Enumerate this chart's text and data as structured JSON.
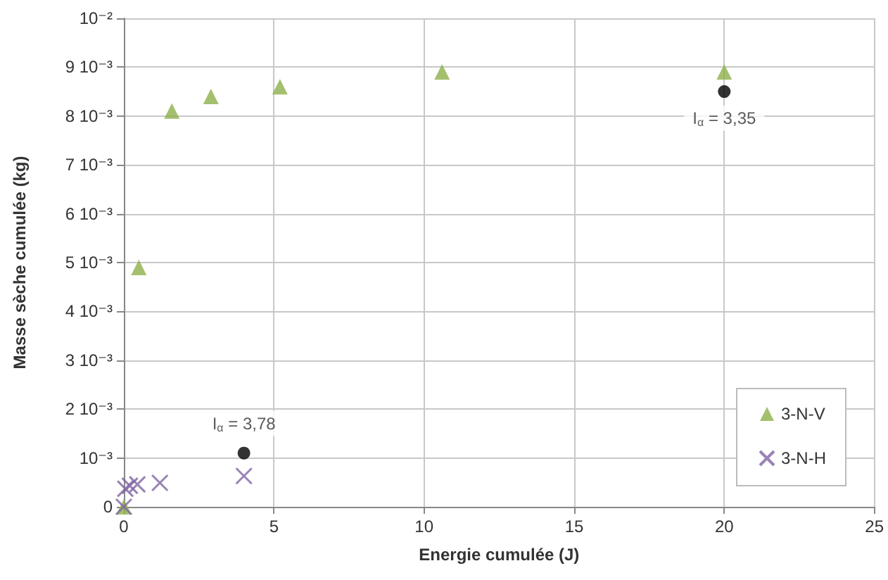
{
  "chart_data": {
    "type": "scatter",
    "xlabel": "Energie cumulée (J)",
    "ylabel": "Masse sèche cumulée (kg)",
    "xlim": [
      0,
      25
    ],
    "xticks": [
      0,
      5,
      10,
      15,
      20,
      25
    ],
    "ylim": [
      0,
      0.01
    ],
    "yticks": [
      0,
      {
        "value": 0.001,
        "label": "10⁻³"
      },
      {
        "value": 0.002,
        "label": "2 10⁻³"
      },
      {
        "value": 0.003,
        "label": "3 10⁻³"
      },
      {
        "value": 0.004,
        "label": "4 10⁻³"
      },
      {
        "value": 0.005,
        "label": "5 10⁻³"
      },
      {
        "value": 0.006,
        "label": "6 10⁻³"
      },
      {
        "value": 0.007,
        "label": "7 10⁻³"
      },
      {
        "value": 0.008,
        "label": "8 10⁻³"
      },
      {
        "value": 0.009,
        "label": "9 10⁻³"
      },
      {
        "value": 0.01,
        "label": "10⁻²"
      }
    ],
    "grid": true,
    "legend": "bottom right",
    "series": [
      {
        "name": "3-N-V",
        "color": "#8db04a",
        "marker": "triangle",
        "x": [
          0,
          0.5,
          1.6,
          2.9,
          5.2,
          10.6,
          20
        ],
        "values": [
          0,
          0.0049,
          0.0081,
          0.0084,
          0.0086,
          0.0089,
          0.0089
        ]
      },
      {
        "name": "3-N-H",
        "color": "#8064a2",
        "marker": "cross",
        "x": [
          0,
          0.05,
          0.2,
          0.45,
          1.2,
          4
        ],
        "values": [
          0,
          0.00037,
          0.00043,
          0.00046,
          0.00049,
          0.00063
        ]
      },
      {
        "color": "#000000",
        "marker": "circle",
        "x": [
          4,
          20
        ],
        "values": [
          0.0011,
          0.0085
        ]
      }
    ],
    "annotations": [
      {
        "text": "I$_{α}$ = 3,35",
        "x": 20,
        "y": 0.0085
      },
      {
        "text": "I$_{α}$ = 3,78",
        "x": 4,
        "y": 0.0011
      }
    ]
  }
}
